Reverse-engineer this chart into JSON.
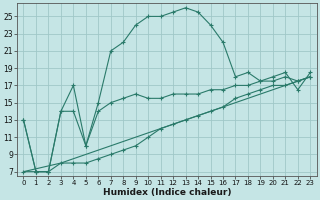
{
  "xlabel": "Humidex (Indice chaleur)",
  "x_ticks": [
    0,
    1,
    2,
    3,
    4,
    5,
    6,
    7,
    8,
    9,
    10,
    11,
    12,
    13,
    14,
    15,
    16,
    17,
    18,
    19,
    20,
    21,
    22,
    23
  ],
  "y_ticks": [
    7,
    9,
    11,
    13,
    15,
    17,
    19,
    21,
    23,
    25
  ],
  "xlim": [
    -0.5,
    23.5
  ],
  "ylim": [
    6.5,
    26.5
  ],
  "bg_color": "#c5e5e5",
  "grid_color": "#a0c8c8",
  "line_color": "#2a7a6a",
  "curve1": {
    "x": [
      0,
      1,
      2,
      3,
      4,
      5,
      6,
      7,
      8,
      9,
      10,
      11,
      12,
      13,
      14,
      15,
      16,
      17,
      18,
      19,
      20,
      21,
      22,
      23
    ],
    "y": [
      13,
      7,
      7,
      14,
      17,
      10,
      15,
      21,
      22,
      24,
      25,
      25,
      25.5,
      26,
      25.5,
      24,
      22,
      18,
      18.5,
      17.5,
      18,
      18.5,
      16.5,
      18.5
    ]
  },
  "curve2": {
    "x": [
      0,
      1,
      2,
      3,
      4,
      5,
      6,
      7,
      8,
      9,
      10,
      11,
      12,
      13,
      14,
      15,
      16,
      17,
      18,
      19,
      20,
      21,
      22,
      23
    ],
    "y": [
      13,
      7,
      7,
      14,
      14,
      10,
      14,
      15,
      15.5,
      16,
      15.5,
      15.5,
      16,
      16,
      16,
      16.5,
      16.5,
      17,
      17,
      17.5,
      17.5,
      18,
      17.5,
      18
    ]
  },
  "curve3": {
    "x": [
      0,
      1,
      2,
      3,
      4,
      5,
      6,
      7,
      8,
      9,
      10,
      11,
      12,
      13,
      14,
      15,
      16,
      17,
      18,
      19,
      20,
      21,
      22,
      23
    ],
    "y": [
      7,
      7,
      7,
      8,
      8,
      8,
      8.5,
      9,
      9.5,
      10,
      11,
      12,
      12.5,
      13,
      13.5,
      14,
      14.5,
      15.5,
      16,
      16.5,
      17,
      17,
      17.5,
      18
    ]
  },
  "curve4": {
    "x": [
      0,
      3,
      23
    ],
    "y": [
      7,
      8,
      18
    ]
  },
  "figsize": [
    3.2,
    2.0
  ],
  "dpi": 100
}
